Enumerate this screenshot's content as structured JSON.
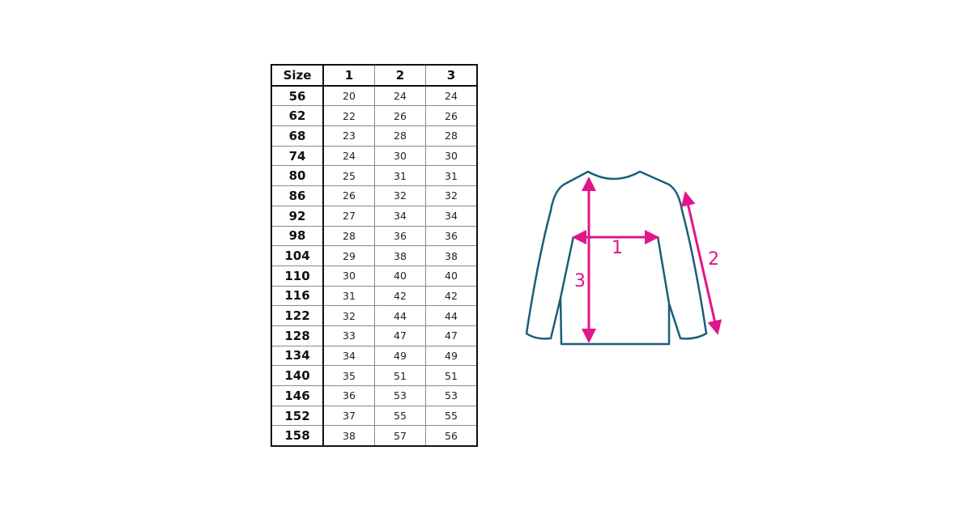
{
  "table": {
    "headers": [
      "Size",
      "1",
      "2",
      "3"
    ],
    "rows": [
      [
        "56",
        "20",
        "24",
        "24"
      ],
      [
        "62",
        "22",
        "26",
        "26"
      ],
      [
        "68",
        "23",
        "28",
        "28"
      ],
      [
        "74",
        "24",
        "30",
        "30"
      ],
      [
        "80",
        "25",
        "31",
        "31"
      ],
      [
        "86",
        "26",
        "32",
        "32"
      ],
      [
        "92",
        "27",
        "34",
        "34"
      ],
      [
        "98",
        "28",
        "36",
        "36"
      ],
      [
        "104",
        "29",
        "38",
        "38"
      ],
      [
        "110",
        "30",
        "40",
        "40"
      ],
      [
        "116",
        "31",
        "42",
        "42"
      ],
      [
        "122",
        "32",
        "44",
        "44"
      ],
      [
        "128",
        "33",
        "47",
        "47"
      ],
      [
        "134",
        "34",
        "49",
        "49"
      ],
      [
        "140",
        "35",
        "51",
        "51"
      ],
      [
        "146",
        "36",
        "53",
        "53"
      ],
      [
        "152",
        "37",
        "55",
        "55"
      ],
      [
        "158",
        "38",
        "57",
        "56"
      ]
    ]
  },
  "diagram": {
    "labels": {
      "chest": "1",
      "sleeve": "2",
      "length": "3"
    },
    "colors": {
      "outline": "#1b5e7a",
      "arrows": "#e0168a"
    }
  }
}
